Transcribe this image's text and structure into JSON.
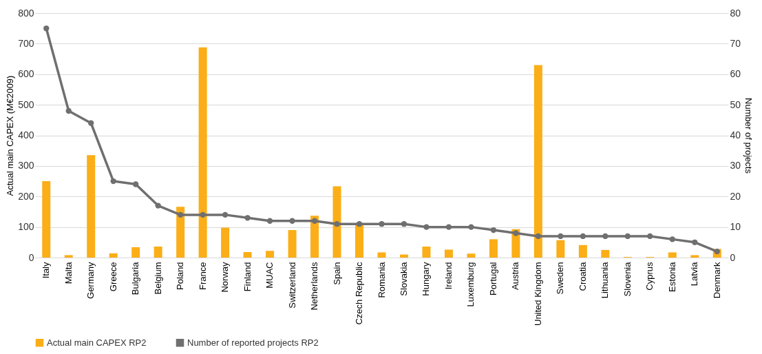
{
  "chart_data": {
    "type": "bar",
    "ylabel": "Actual main CAPEX (M€2009)",
    "y2label": "Number of projects",
    "categories": [
      "Italy",
      "Malta",
      "Germany",
      "Greece",
      "Bulgaria",
      "Belgium",
      "Poland",
      "France",
      "Norway",
      "Finland",
      "MUAC",
      "Switzerland",
      "Netherlands",
      "Spain",
      "Czech Republic",
      "Romania",
      "Slovakia",
      "Hungary",
      "Ireland",
      "Luxemburg",
      "Portugal",
      "Austria",
      "United Kingdom",
      "Sweden",
      "Croatia",
      "Lithuania",
      "Slovenia",
      "Cyprus",
      "Estonia",
      "Latvia",
      "Denmark"
    ],
    "series": [
      {
        "name": "Actual main CAPEX RP2",
        "color": "#fbae17",
        "values": [
          250,
          8,
          335,
          14,
          34,
          36,
          166,
          688,
          98,
          18,
          22,
          90,
          137,
          233,
          106,
          17,
          10,
          36,
          26,
          13,
          60,
          93,
          630,
          57,
          41,
          25,
          2,
          2,
          17,
          8,
          28
        ]
      },
      {
        "name": "Number of reported projects RP2",
        "type": "line",
        "axis": "y2",
        "color": "#6f6f6f",
        "marker": "circle",
        "values": [
          75,
          48,
          44,
          25,
          24,
          17,
          14,
          14,
          14,
          13,
          12,
          12,
          12,
          11,
          11,
          11,
          11,
          10,
          10,
          10,
          9,
          8,
          7,
          7,
          7,
          7,
          7,
          7,
          6,
          5,
          2
        ]
      }
    ],
    "ylim": [
      0,
      800
    ],
    "yticks": [
      0,
      100,
      200,
      300,
      400,
      500,
      600,
      700,
      800
    ],
    "y2lim": [
      0,
      80
    ],
    "y2ticks": [
      0,
      10,
      20,
      30,
      40,
      50,
      60,
      70,
      80
    ],
    "grid": "y",
    "legend": "bottom"
  }
}
